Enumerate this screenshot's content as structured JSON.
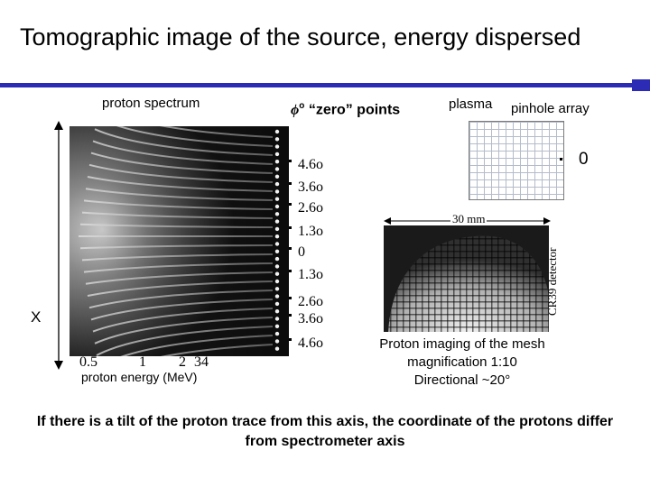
{
  "slide": {
    "title": "Tomographic image of the source, energy dispersed"
  },
  "spectrometer": {
    "heading": "proton spectrum",
    "x_axis_marker": "X",
    "energy_ticks": [
      "0.5",
      "1",
      "2",
      "3",
      "4"
    ],
    "energy_axis_label": "proton energy (MeV)"
  },
  "zero_points": {
    "symbol": "ϕ",
    "degree": "o",
    "label": "“zero” points",
    "angles": [
      "4.6o",
      "3.6o",
      "2.6o",
      "1.3o",
      "0",
      "1.3o",
      "2.6o",
      "3.6o",
      "4.6o"
    ]
  },
  "mesh_setup": {
    "plasma_label": "plasma",
    "pinhole_label": "pinhole array",
    "zero_label": "0",
    "scale_label": "30 mm",
    "detector_label": "CR39 detector"
  },
  "mesh_caption": {
    "line1": "Proton imaging of the mesh",
    "line2": "magnification 1:10",
    "line3": "Directional ~20°"
  },
  "footnote": {
    "line1": "If there is a tilt of the proton trace from this axis, the coordinate of the protons differ",
    "line2": "from spectrometer axis"
  }
}
